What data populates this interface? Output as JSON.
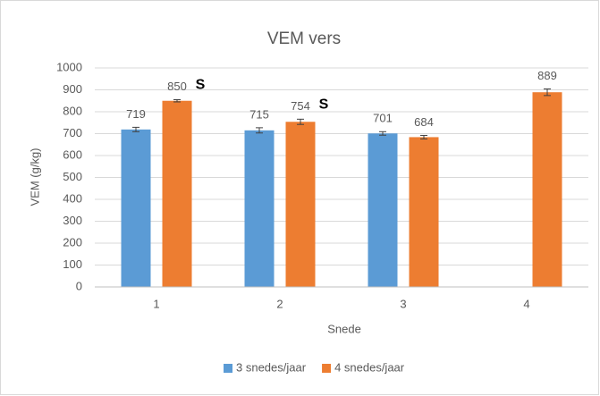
{
  "chart_data": {
    "type": "bar",
    "title": "VEM vers",
    "x_label": "Snede",
    "y_label": "VEM (g/kg)",
    "categories": [
      "1",
      "2",
      "3",
      "4"
    ],
    "series": [
      {
        "name": "3 snedes/jaar",
        "color": "#5b9bd5",
        "values": [
          719,
          715,
          701,
          null
        ],
        "errors": [
          10,
          12,
          8,
          null
        ]
      },
      {
        "name": "4 snedes/jaar",
        "color": "#ed7d31",
        "values": [
          850,
          754,
          684,
          889
        ],
        "errors": [
          5,
          12,
          8,
          15
        ],
        "annotations": [
          "S",
          "S",
          null,
          null
        ]
      }
    ],
    "ylim": [
      0,
      1000
    ],
    "yticks": [
      0,
      100,
      200,
      300,
      400,
      500,
      600,
      700,
      800,
      900,
      1000
    ],
    "grid": true,
    "legend": "bottom"
  }
}
